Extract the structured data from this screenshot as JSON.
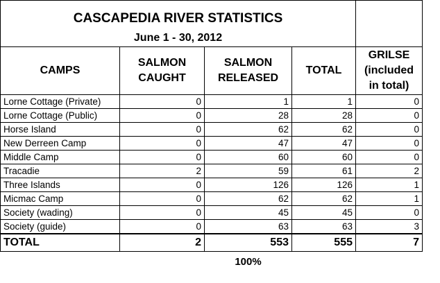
{
  "title": "CASCAPEDIA RIVER STATISTICS",
  "subtitle": "June 1 - 30, 2012",
  "headers": {
    "camps": "CAMPS",
    "caught_line1": "SALMON",
    "caught_line2": "CAUGHT",
    "released_line1": "SALMON",
    "released_line2": "RELEASED",
    "total": "TOTAL",
    "grilse_line1": "GRILSE",
    "grilse_line2": "(included",
    "grilse_line3": "in total)"
  },
  "rows": [
    {
      "camp": "Lorne Cottage (Private)",
      "caught": "0",
      "released": "1",
      "total": "1",
      "grilse": "0"
    },
    {
      "camp": "Lorne Cottage (Public)",
      "caught": "0",
      "released": "28",
      "total": "28",
      "grilse": "0"
    },
    {
      "camp": "Horse Island",
      "caught": "0",
      "released": "62",
      "total": "62",
      "grilse": "0"
    },
    {
      "camp": "New Derreen Camp",
      "caught": "0",
      "released": "47",
      "total": "47",
      "grilse": "0"
    },
    {
      "camp": "Middle Camp",
      "caught": "0",
      "released": "60",
      "total": "60",
      "grilse": "0"
    },
    {
      "camp": "Tracadie",
      "caught": "2",
      "released": "59",
      "total": "61",
      "grilse": "2"
    },
    {
      "camp": "Three Islands",
      "caught": "0",
      "released": "126",
      "total": "126",
      "grilse": "1"
    },
    {
      "camp": "Micmac Camp",
      "caught": "0",
      "released": "62",
      "total": "62",
      "grilse": "1"
    },
    {
      "camp": "Society (wading)",
      "caught": "0",
      "released": "45",
      "total": "45",
      "grilse": "0"
    },
    {
      "camp": "Society (guide)",
      "caught": "0",
      "released": "63",
      "total": "63",
      "grilse": "3"
    }
  ],
  "totals": {
    "label": "TOTAL",
    "caught": "2",
    "released": "553",
    "total": "555",
    "grilse": "7"
  },
  "released_percent": "100%"
}
